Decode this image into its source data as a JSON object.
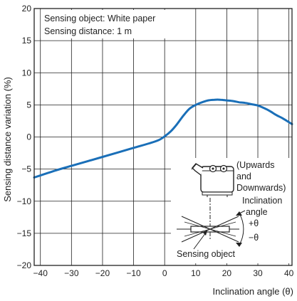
{
  "chart_data": {
    "type": "line",
    "title": "",
    "xlabel": "Inclination angle (θ)",
    "ylabel": "Sensing distance variation (%)",
    "xlim": [
      -42,
      41
    ],
    "ylim": [
      -20,
      20
    ],
    "x_ticks": [
      "−40",
      "−30",
      "−20",
      "−10",
      "0",
      "10",
      "20",
      "30",
      "40"
    ],
    "y_ticks": [
      "20",
      "15",
      "10",
      "5",
      "0",
      "−5",
      "−10",
      "−15",
      "−20"
    ],
    "grid": true,
    "legend": "none",
    "line_color": "#1a6fb8",
    "series": [
      {
        "x": [
          -42,
          -35,
          -30,
          -25,
          -20,
          -15,
          -10,
          -5,
          -2,
          0,
          2,
          4,
          6,
          8,
          10,
          12,
          14,
          16,
          18,
          20,
          22,
          24,
          26,
          28,
          30,
          32,
          34,
          36,
          38,
          41
        ],
        "values": [
          -6.3,
          -5.2,
          -4.5,
          -3.8,
          -3.1,
          -2.4,
          -1.7,
          -1.0,
          -0.5,
          0.1,
          0.9,
          2.0,
          3.3,
          4.4,
          5.0,
          5.4,
          5.7,
          5.8,
          5.8,
          5.7,
          5.6,
          5.4,
          5.3,
          5.1,
          4.9,
          4.5,
          4.0,
          3.4,
          2.9,
          2.0
        ]
      }
    ],
    "annotations": {
      "conditions": [
        "Sensing object: White paper",
        "Sensing distance: 1 m"
      ],
      "direction": [
        "(Upwards",
        "and",
        "Downwards)"
      ],
      "angle_label": [
        "Inclination",
        "angle"
      ],
      "plus": "+θ",
      "minus": "−θ",
      "object": "Sensing object"
    }
  }
}
